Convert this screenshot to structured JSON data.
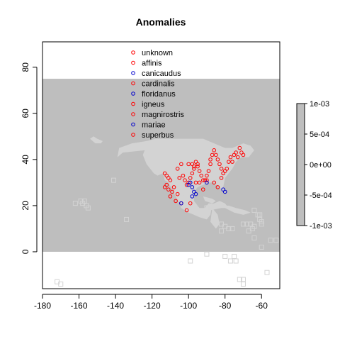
{
  "chart_data": {
    "type": "scatter",
    "title": "Anomalies",
    "xlabel": "",
    "ylabel": "",
    "xlim": [
      -180,
      -50
    ],
    "ylim": [
      -16,
      91
    ],
    "x_ticks": [
      -180,
      -160,
      -140,
      -120,
      -100,
      -80,
      -60
    ],
    "y_ticks": [
      0,
      20,
      40,
      60,
      80
    ],
    "grid": false,
    "legend_position": "top-center",
    "colors": {
      "background_band": "#bebebe",
      "land": "#d3d3d3",
      "red": "#ff0000",
      "blue": "#0000cd"
    },
    "raster_band": {
      "y_from": 0,
      "y_to": 75,
      "x_from": -180,
      "x_to": -50
    },
    "legend": [
      {
        "label": "unknown",
        "color": "red"
      },
      {
        "label": "affinis",
        "color": "red"
      },
      {
        "label": "canicaudus",
        "color": "blue"
      },
      {
        "label": "cardinalis",
        "color": "red"
      },
      {
        "label": "floridanus",
        "color": "blue"
      },
      {
        "label": "igneus",
        "color": "red"
      },
      {
        "label": "magnirostris",
        "color": "red"
      },
      {
        "label": "mariae",
        "color": "blue"
      },
      {
        "label": "superbus",
        "color": "red"
      }
    ],
    "colorbar": {
      "ticks": [
        "1e-03",
        "5e-04",
        "0e+00",
        "-5e-04",
        "-1e-03"
      ],
      "range": [
        -0.001,
        0.001
      ]
    },
    "series": [
      {
        "color": "red",
        "points": [
          [
            -113,
            34
          ],
          [
            -112,
            33
          ],
          [
            -111,
            32
          ],
          [
            -110,
            31
          ],
          [
            -112,
            29
          ],
          [
            -113,
            28
          ],
          [
            -111,
            27
          ],
          [
            -109,
            26
          ],
          [
            -110,
            24
          ],
          [
            -107,
            22
          ],
          [
            -104,
            21
          ],
          [
            -106,
            25
          ],
          [
            -108,
            28
          ],
          [
            -105,
            32
          ],
          [
            -103,
            33
          ],
          [
            -102,
            31
          ],
          [
            -101,
            29
          ],
          [
            -100,
            30
          ],
          [
            -99,
            32
          ],
          [
            -98,
            34
          ],
          [
            -97,
            36
          ],
          [
            -98,
            38
          ],
          [
            -96,
            39
          ],
          [
            -95,
            37
          ],
          [
            -94,
            35
          ],
          [
            -93,
            33
          ],
          [
            -92,
            31
          ],
          [
            -91,
            31
          ],
          [
            -90,
            33
          ],
          [
            -89,
            35
          ],
          [
            -88,
            38
          ],
          [
            -88,
            40
          ],
          [
            -87,
            42
          ],
          [
            -86,
            44
          ],
          [
            -85,
            42
          ],
          [
            -84,
            40
          ],
          [
            -83,
            38
          ],
          [
            -82,
            36
          ],
          [
            -81,
            34
          ],
          [
            -80,
            35
          ],
          [
            -79,
            36
          ],
          [
            -78,
            39
          ],
          [
            -77,
            41
          ],
          [
            -76,
            39
          ],
          [
            -75,
            42
          ],
          [
            -74,
            43
          ],
          [
            -73,
            41
          ],
          [
            -72,
            45
          ],
          [
            -71,
            43
          ],
          [
            -70,
            42
          ],
          [
            -99,
            21
          ],
          [
            -101,
            18
          ],
          [
            -96,
            30
          ],
          [
            -94,
            30
          ],
          [
            -92,
            27
          ],
          [
            -90,
            31
          ],
          [
            -86,
            30
          ],
          [
            -84,
            28
          ],
          [
            -82,
            32
          ],
          [
            -97,
            37
          ],
          [
            -95,
            38
          ],
          [
            -104,
            38
          ],
          [
            -106,
            36
          ],
          [
            -100,
            38
          ]
        ]
      },
      {
        "color": "blue",
        "points": [
          [
            -99,
            30
          ],
          [
            -98,
            28
          ],
          [
            -97,
            26
          ],
          [
            -98,
            24
          ],
          [
            -96,
            25
          ],
          [
            -90,
            30
          ],
          [
            -81,
            27
          ],
          [
            -80,
            26
          ],
          [
            -104,
            21
          ],
          [
            -100,
            29
          ]
        ]
      }
    ]
  }
}
